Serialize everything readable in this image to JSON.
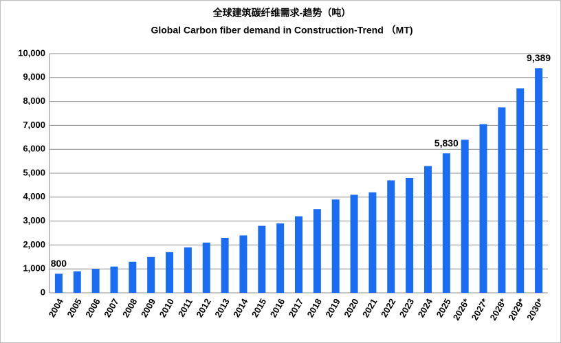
{
  "chart_data": {
    "type": "bar",
    "title": "全球建筑碳纤维需求-趋势（吨）",
    "subtitle": "Global Carbon fiber demand in Construction-Trend （MT)",
    "categories": [
      "2004",
      "2005",
      "2006",
      "2007",
      "2008",
      "2009",
      "2010",
      "2011",
      "2012",
      "2013",
      "2014",
      "2015",
      "2016",
      "2017",
      "2018",
      "2019",
      "2020",
      "2021",
      "2022",
      "2023",
      "2024",
      "2025",
      "2026*",
      "2027*",
      "2028*",
      "2029*",
      "2030*"
    ],
    "values": [
      800,
      900,
      1000,
      1100,
      1300,
      1500,
      1700,
      1900,
      2100,
      2300,
      2400,
      2800,
      2900,
      3200,
      3500,
      3900,
      4100,
      4200,
      4700,
      4800,
      5300,
      5830,
      6400,
      7050,
      7750,
      8550,
      9389
    ],
    "value_labels": [
      "800",
      null,
      null,
      null,
      null,
      null,
      null,
      null,
      null,
      null,
      null,
      null,
      null,
      null,
      null,
      null,
      null,
      null,
      null,
      null,
      null,
      "5,830",
      null,
      null,
      null,
      null,
      "9,389"
    ],
    "color": "#1a6cf2",
    "ylim": [
      0,
      10000
    ],
    "yticks": [
      0,
      {
        "value": 1000,
        "label": "1,000"
      },
      {
        "value": 2000,
        "label": "2,000"
      },
      {
        "value": 3000,
        "label": "3,000"
      },
      {
        "value": 4000,
        "label": "4,000"
      },
      {
        "value": 5000,
        "label": "5,000"
      },
      {
        "value": 6000,
        "label": "6,000"
      },
      {
        "value": 7000,
        "label": "7,000"
      },
      {
        "value": 8000,
        "label": "8,000"
      },
      {
        "value": 9000,
        "label": "9,000"
      },
      {
        "value": 10000,
        "label": "10,000"
      }
    ],
    "grid": true
  }
}
